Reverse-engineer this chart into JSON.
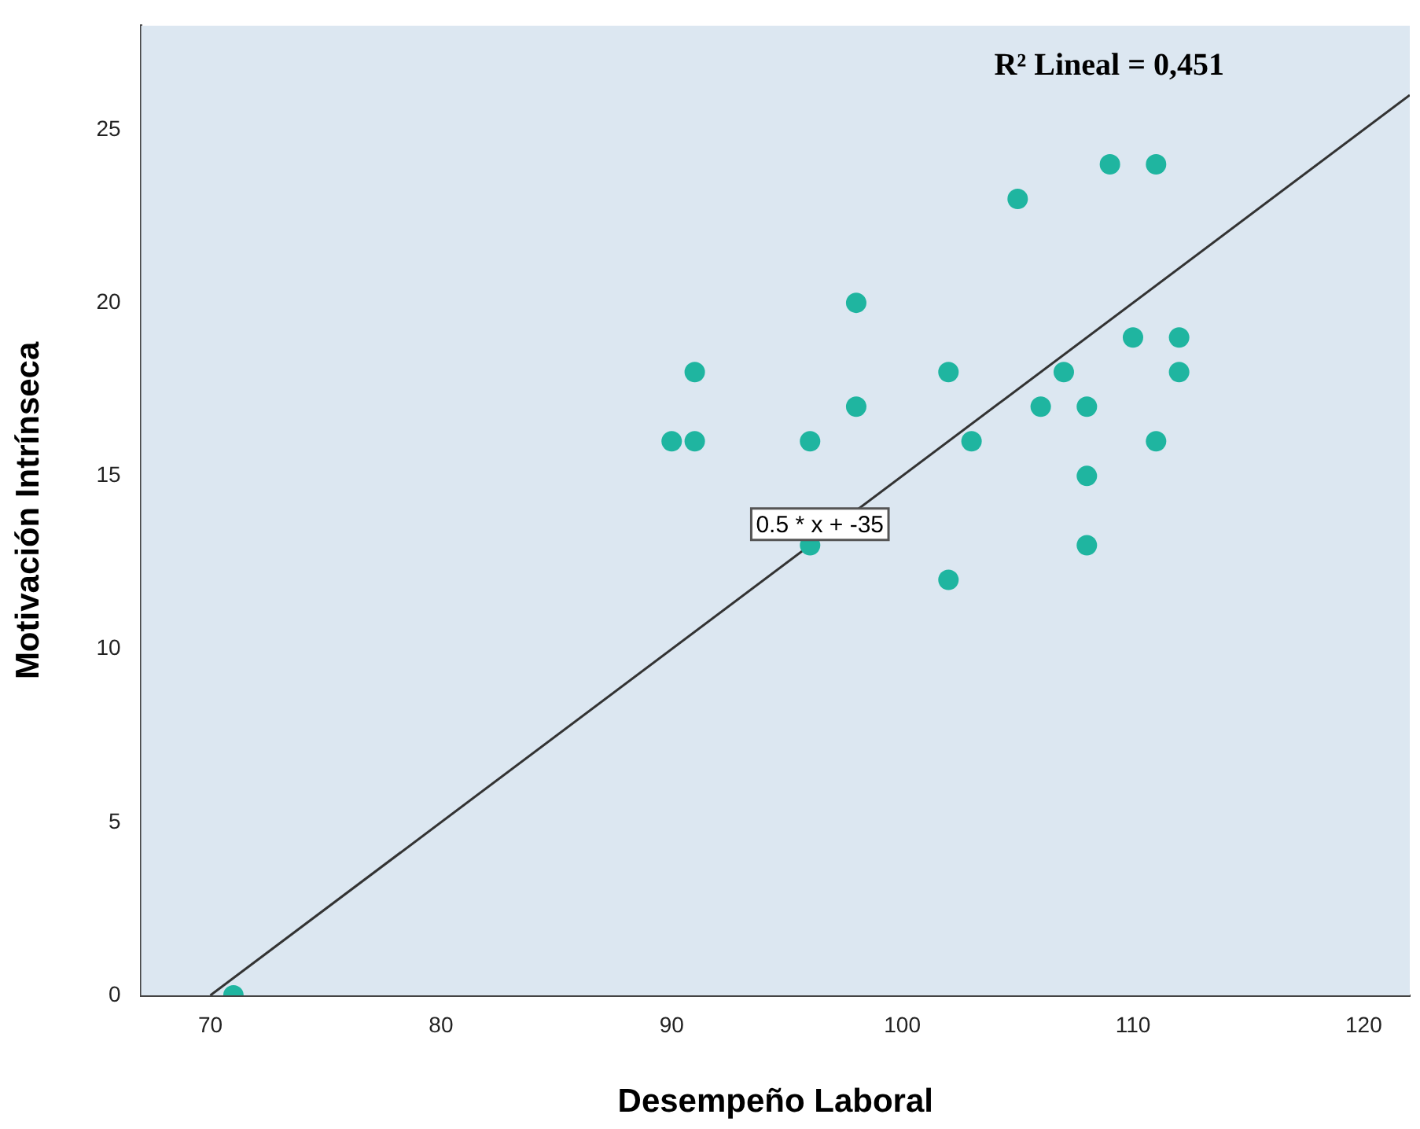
{
  "chart_data": {
    "type": "scatter",
    "xlabel": "Desempeño Laboral",
    "ylabel": "Motivación Intrínseca",
    "xlim": [
      67,
      122
    ],
    "xticks": [
      70,
      80,
      90,
      100,
      110,
      120
    ],
    "ylim": [
      0,
      28
    ],
    "yticks": [
      0,
      5,
      10,
      15,
      20,
      25
    ],
    "grid": false,
    "legend": false,
    "series": [
      {
        "marker": "circle",
        "color": "#1fb5a0",
        "x": [
          71,
          90,
          91,
          91,
          96,
          96,
          98,
          98,
          102,
          102,
          103,
          105,
          106,
          107,
          108,
          108,
          108,
          109,
          110,
          111,
          111,
          112,
          112
        ],
        "values": [
          0,
          16,
          16,
          18,
          16,
          13,
          20,
          17,
          18,
          12,
          16,
          23,
          17,
          18,
          17,
          15,
          13,
          24,
          19,
          24,
          16,
          19,
          18
        ]
      },
      {
        "type": "line",
        "marker": "none",
        "color": "#333333",
        "x": [
          70,
          122
        ],
        "values": [
          0,
          26
        ]
      }
    ],
    "annotations": [
      "R² Lineal = 0,451",
      "0.5 * x + -35"
    ]
  }
}
